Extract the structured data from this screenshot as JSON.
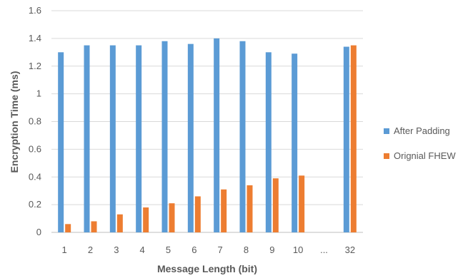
{
  "chart_data": {
    "type": "bar",
    "title": "",
    "xlabel": "Message Length (bit)",
    "ylabel": "Encryption Time (ms)",
    "categories": [
      "1",
      "2",
      "3",
      "4",
      "5",
      "6",
      "7",
      "8",
      "9",
      "10",
      "...",
      "32"
    ],
    "ylim": [
      0,
      1.6
    ],
    "yticks": [
      "0",
      "0.2",
      "0.4",
      "0.6",
      "0.8",
      "1",
      "1.2",
      "1.4",
      "1.6"
    ],
    "grid": true,
    "legend_position": "right",
    "series": [
      {
        "name": "After Padding",
        "color": "#5b9bd5",
        "values": [
          1.3,
          1.35,
          1.35,
          1.35,
          1.38,
          1.36,
          1.4,
          1.38,
          1.3,
          1.29,
          null,
          1.34
        ]
      },
      {
        "name": "Orignial FHEW",
        "color": "#ed7d31",
        "values": [
          0.06,
          0.08,
          0.13,
          0.18,
          0.21,
          0.26,
          0.31,
          0.34,
          0.39,
          0.41,
          null,
          1.35
        ]
      }
    ]
  }
}
